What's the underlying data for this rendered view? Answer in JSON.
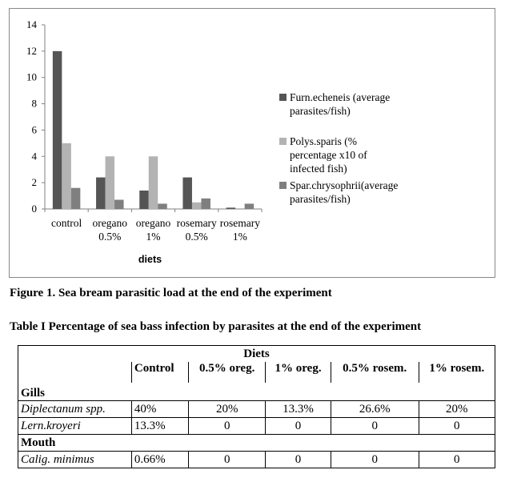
{
  "chart_data": {
    "type": "bar",
    "title": "",
    "xlabel": "diets",
    "ylabel": "",
    "ylim": [
      0,
      14
    ],
    "yticks": [
      "0",
      "2",
      "4",
      "6",
      "8",
      "10",
      "12",
      "14"
    ],
    "categories": [
      [
        "control"
      ],
      [
        "oregano",
        "0.5%"
      ],
      [
        "oregano",
        "1%"
      ],
      [
        "rosemary",
        "0.5%"
      ],
      [
        "rosemary",
        "1%"
      ]
    ],
    "series": [
      {
        "name": [
          "Furn.echeneis (average",
          "parasites/fish)"
        ],
        "color": "#555555",
        "values": [
          12,
          2.4,
          1.4,
          2.4,
          0.1
        ]
      },
      {
        "name": [
          "Polys.sparis (%",
          "percentage x10 of",
          "infected fish)"
        ],
        "color": "#b3b3b3",
        "values": [
          5,
          4,
          4,
          0.5,
          0
        ]
      },
      {
        "name": [
          "Spar.chrysophrii(average",
          "parasites/fish)"
        ],
        "color": "#7f7f7f",
        "values": [
          1.6,
          0.7,
          0.4,
          0.8,
          0.4
        ]
      }
    ],
    "grid": false,
    "legend_position": "right"
  },
  "figure_caption": "Figure 1. Sea bream parasitic load at the end of the experiment",
  "table_caption": "Table I Percentage of sea bass infection by parasites at the end of the experiment",
  "table": {
    "group_header": "Diets",
    "columns": [
      "Control",
      "0.5% oreg.",
      "1% oreg.",
      "0.5% rosem.",
      "1% rosem."
    ],
    "sections": [
      {
        "name": "Gills",
        "rows": [
          {
            "parasite": "Diplectanum spp.",
            "values": [
              "40%",
              "20%",
              "13.3%",
              "26.6%",
              "20%"
            ]
          },
          {
            "parasite": "Lern.kroyeri",
            "values": [
              "13.3%",
              "0",
              "0",
              "0",
              "0"
            ]
          }
        ]
      },
      {
        "name": "Mouth",
        "rows": [
          {
            "parasite": "Calig. minimus",
            "values": [
              "0.66%",
              "0",
              "0",
              "0",
              "0"
            ]
          }
        ]
      }
    ]
  }
}
